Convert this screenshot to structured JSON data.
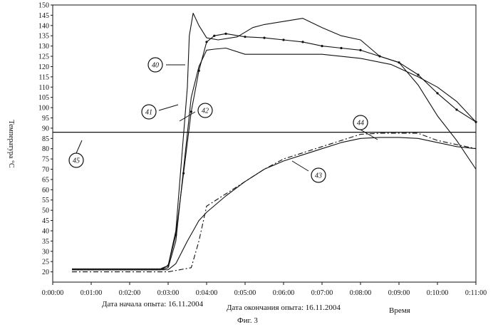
{
  "chart_data": {
    "type": "line",
    "ylabel": "Температура °С",
    "xlabel": "Время",
    "caption": "Фиг. 3",
    "footer_left": "Дата начала опыта: 16.11.2004",
    "footer_right": "Дата окончания опыта: 16.11.2004",
    "ylim": [
      15,
      150
    ],
    "xlim_minutes": [
      0,
      11
    ],
    "y_ticks": [
      20,
      25,
      30,
      35,
      40,
      45,
      50,
      55,
      60,
      65,
      70,
      75,
      80,
      85,
      90,
      95,
      100,
      105,
      110,
      115,
      120,
      125,
      130,
      135,
      140,
      145,
      150
    ],
    "x_tick_labels": [
      "0:00:00",
      "0:01:00",
      "0:02:00",
      "0:03:00",
      "0:04:00",
      "0:05:00",
      "0:06:00",
      "0:07:00",
      "0:08:00",
      "0:09:00",
      "0:10:00",
      "0:11:00"
    ],
    "grid": false,
    "reference_line": {
      "label": "45",
      "y": 88
    },
    "series": [
      {
        "name": "40",
        "style": "solid",
        "x": [
          0.5,
          1.0,
          2.0,
          2.8,
          3.0,
          3.2,
          3.35,
          3.5,
          3.55,
          3.65,
          3.8,
          4.0,
          4.3,
          4.8,
          5.2,
          5.5,
          6.0,
          6.5,
          7.0,
          7.5,
          8.0,
          8.5,
          9.0,
          9.5,
          10.0,
          10.5,
          11.0
        ],
        "y": [
          21.5,
          21.5,
          21.5,
          21.5,
          23,
          40,
          75,
          110,
          135,
          146,
          140,
          134,
          133,
          134.5,
          139,
          140.5,
          142,
          143.5,
          139,
          135,
          133,
          125,
          122,
          111,
          96,
          84,
          70
        ]
      },
      {
        "name": "41",
        "style": "solid",
        "x": [
          0.5,
          1.0,
          2.0,
          2.8,
          3.0,
          3.2,
          3.4,
          3.6,
          3.8,
          4.0,
          4.2,
          4.5,
          5.0,
          6.0,
          7.0,
          8.0,
          8.8,
          9.5,
          10.0,
          10.5,
          11.0
        ],
        "y": [
          21,
          21,
          21,
          21,
          22,
          35,
          70,
          105,
          120,
          128,
          128.5,
          129,
          126,
          126,
          126,
          124,
          121,
          115,
          110,
          103,
          93
        ]
      },
      {
        "name": "42",
        "style": "dotted",
        "x": [
          0.5,
          1.0,
          2.0,
          2.8,
          3.0,
          3.2,
          3.4,
          3.6,
          3.8,
          4.0,
          4.2,
          4.5,
          5.0,
          5.5,
          6.0,
          6.5,
          7.0,
          7.5,
          8.0,
          8.5,
          9.0,
          9.5,
          10.0,
          10.5,
          11.0
        ],
        "y": [
          21,
          21,
          21,
          21,
          23,
          38,
          68,
          98,
          118,
          132,
          135,
          136,
          134.5,
          134,
          133,
          132,
          130,
          129,
          128,
          125,
          122,
          116,
          107,
          99,
          93
        ]
      },
      {
        "name": "43",
        "style": "solid",
        "x": [
          0.5,
          1.0,
          2.0,
          3.0,
          3.2,
          3.5,
          3.8,
          4.0,
          4.5,
          5.0,
          5.5,
          6.0,
          6.5,
          7.0,
          7.5,
          8.0,
          8.5,
          9.0,
          9.5,
          10.0,
          10.5,
          11.0
        ],
        "y": [
          21,
          21,
          21,
          21,
          24,
          35,
          45,
          49,
          57,
          64,
          70,
          74,
          77,
          80,
          83,
          85,
          85.5,
          85.5,
          85,
          83,
          81,
          80
        ]
      },
      {
        "name": "44",
        "style": "dashdot",
        "x": [
          0.5,
          1.0,
          2.0,
          3.0,
          3.3,
          3.6,
          3.8,
          4.0,
          4.5,
          5.0,
          5.5,
          6.0,
          6.5,
          7.0,
          7.5,
          8.0,
          8.5,
          9.0,
          9.5,
          10.0,
          10.5,
          11.0
        ],
        "y": [
          20,
          20,
          20,
          20,
          21,
          22,
          35,
          52,
          58,
          64,
          70,
          75,
          78,
          81,
          84,
          87,
          87.5,
          87.5,
          87.5,
          84,
          82,
          80
        ]
      }
    ],
    "callouts": [
      {
        "label": "40",
        "series": "40"
      },
      {
        "label": "41",
        "series": "41"
      },
      {
        "label": "42",
        "series": "42"
      },
      {
        "label": "43",
        "series": "43"
      },
      {
        "label": "44",
        "series": "44"
      },
      {
        "label": "45",
        "series": "reference"
      }
    ]
  }
}
